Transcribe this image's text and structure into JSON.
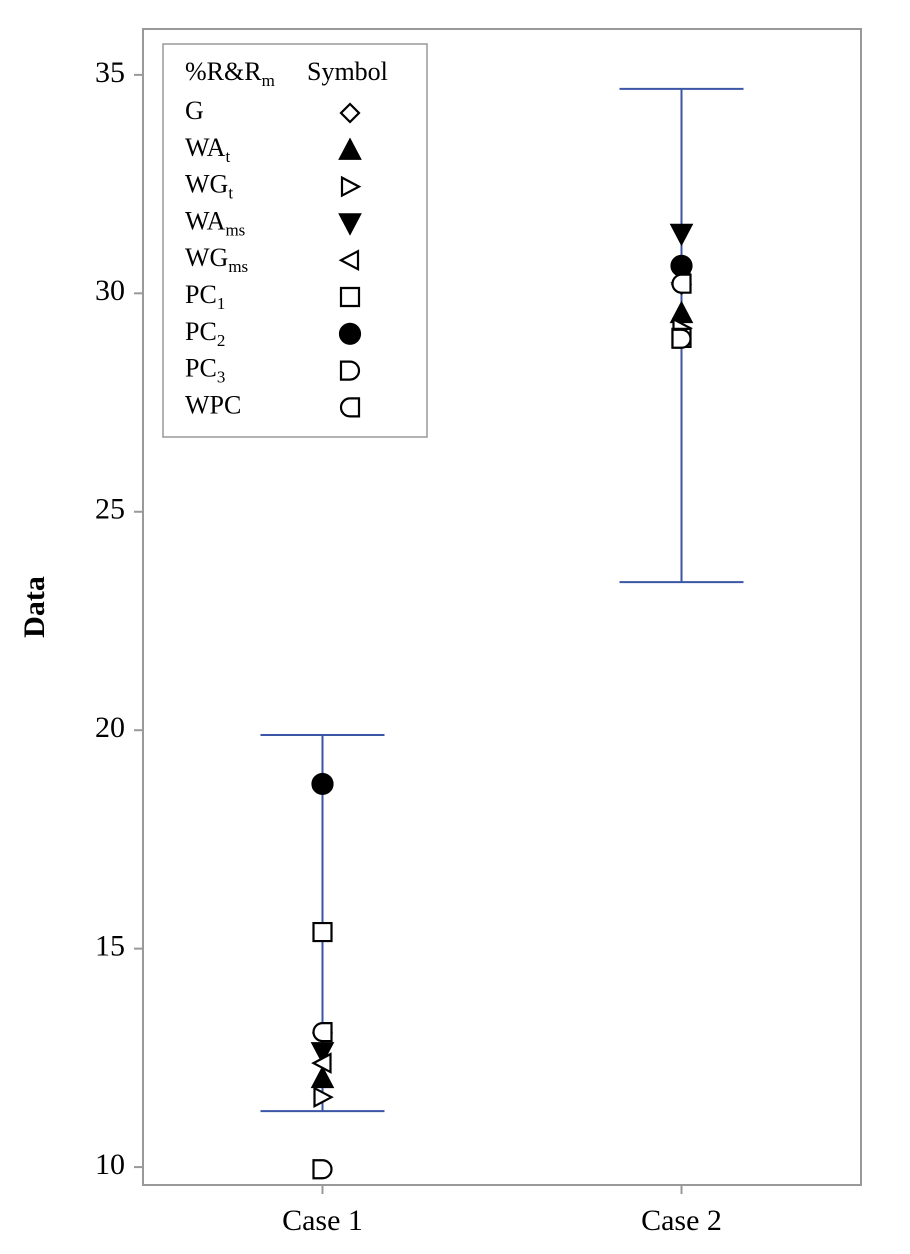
{
  "chart_data": {
    "type": "interval",
    "y_label": "Data",
    "categories": [
      "Case 1",
      "Case 2"
    ],
    "ylim": [
      9.59,
      36.05
    ],
    "yticks": [
      10,
      15,
      20,
      25,
      30,
      35
    ],
    "interval_color": "#3a56a5",
    "intervals": {
      "low": [
        11.28,
        23.39
      ],
      "high": [
        19.89,
        34.68
      ]
    },
    "legend_title": {
      "text": "%R&R",
      "sub": "m"
    },
    "legend_symbol_header": "Symbol",
    "legend_position": "upper left",
    "series": [
      {
        "name": "G",
        "sub": null,
        "marker": "diamond",
        "filled": false,
        "color": "#000000",
        "values": [
          13.07,
          30.2
        ]
      },
      {
        "name": "WA",
        "sub": "t",
        "marker": "triangle-up",
        "filled": true,
        "color": "#000000",
        "values": [
          12.04,
          29.55
        ]
      },
      {
        "name": "WG",
        "sub": "t",
        "marker": "triangle-right",
        "filled": false,
        "color": "#000000",
        "values": [
          11.6,
          29.2
        ]
      },
      {
        "name": "WA",
        "sub": "ms",
        "marker": "triangle-down",
        "filled": true,
        "color": "#000000",
        "values": [
          12.63,
          31.36
        ]
      },
      {
        "name": "WG",
        "sub": "ms",
        "marker": "triangle-left",
        "filled": false,
        "color": "#000000",
        "values": [
          12.38,
          30.24
        ]
      },
      {
        "name": "PC",
        "sub": "1",
        "marker": "square",
        "filled": false,
        "color": "#000000",
        "values": [
          15.38,
          28.98
        ]
      },
      {
        "name": "PC",
        "sub": "2",
        "marker": "circle",
        "filled": true,
        "color": "#000000",
        "values": [
          18.77,
          30.63
        ]
      },
      {
        "name": "PC",
        "sub": "3",
        "marker": "d-right",
        "filled": false,
        "color": "#000000",
        "values": [
          9.95,
          28.96
        ]
      },
      {
        "name": "WPC",
        "sub": null,
        "marker": "d-left",
        "filled": false,
        "color": "#000000",
        "values": [
          13.09,
          30.22
        ]
      }
    ]
  }
}
